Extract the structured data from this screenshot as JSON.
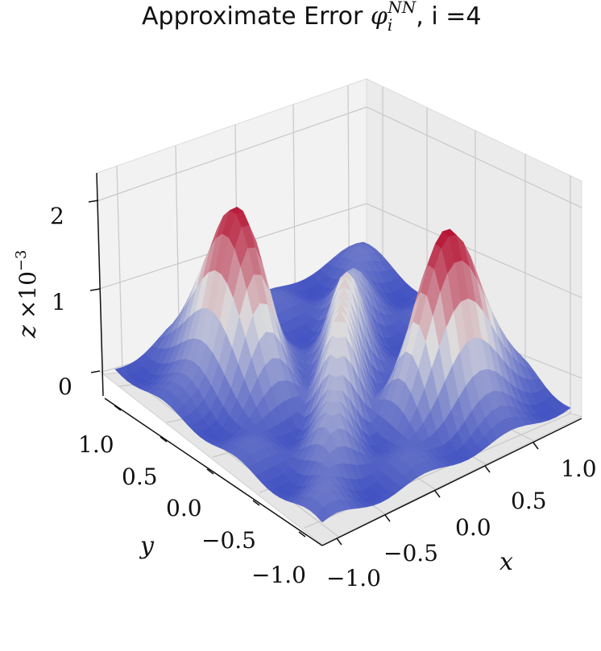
{
  "chart_data": {
    "type": "surface",
    "title_plain": "Approximate Error ",
    "title_symbol": "φ",
    "title_superscript": "NN",
    "title_subscript": "i",
    "title_suffix": ", i =4",
    "xlabel": "x",
    "ylabel": "y",
    "zlabel": "z",
    "zlabel_scale": "×10",
    "zlabel_scale_exp": "−3",
    "xlim": [
      -1.0,
      1.0
    ],
    "ylim": [
      -1.0,
      1.0
    ],
    "zlim": [
      0,
      2.3
    ],
    "x_ticks": [
      "−1.0",
      "−0.5",
      "0.0",
      "0.5",
      "1.0"
    ],
    "y_ticks": [
      "−1.0",
      "−0.5",
      "0.0",
      "0.5",
      "1.0"
    ],
    "z_ticks": [
      "0",
      "1",
      "2"
    ],
    "colormap": "coolwarm",
    "grid": true,
    "surface_samples": [
      {
        "x": 0.0,
        "y": 0.0,
        "z": 1.3
      },
      {
        "x": -0.5,
        "y": 0.5,
        "z": 2.15
      },
      {
        "x": 0.5,
        "y": -0.5,
        "z": 2.2
      },
      {
        "x": 1.0,
        "y": 1.0,
        "z": 0.15
      },
      {
        "x": -1.0,
        "y": -1.0,
        "z": 0.1
      }
    ],
    "colors": {
      "low": "#3b4cc0",
      "mid": "#dddddd",
      "high": "#b40426"
    }
  }
}
